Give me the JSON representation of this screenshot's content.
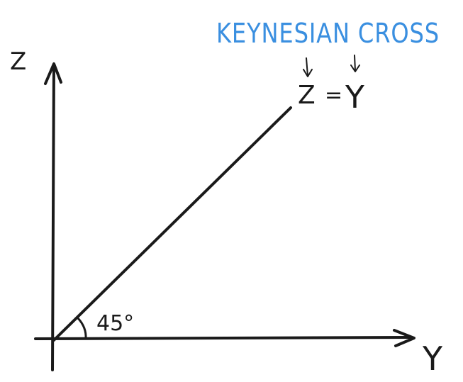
{
  "diagram": {
    "title": "KEYNESIAN CROSS",
    "title_color": "#3a8fe0",
    "ink_color": "#1a1a1a",
    "y_axis_label": "Z",
    "x_axis_label": "Y",
    "line_label_left": "Z",
    "line_label_equals": "=",
    "line_label_right": "Y",
    "angle_label": "45°"
  }
}
